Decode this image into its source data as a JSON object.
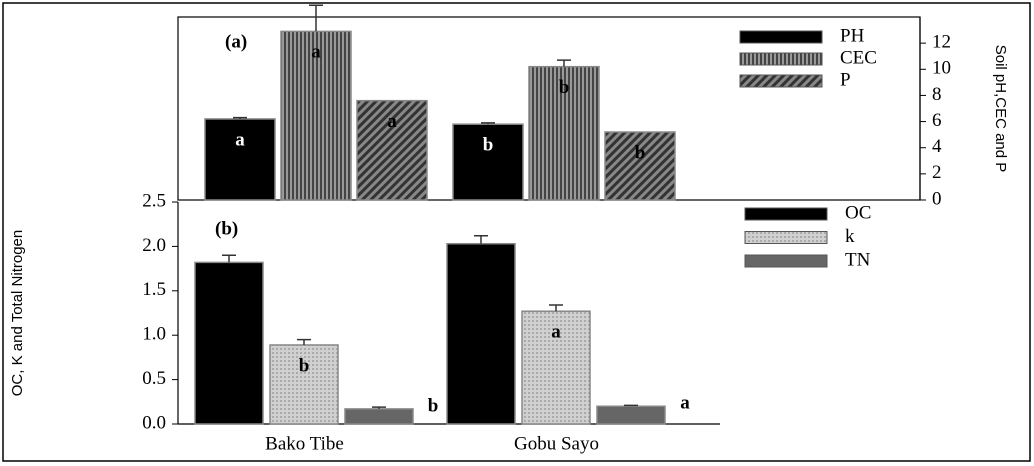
{
  "chart_data": [
    {
      "type": "bar",
      "panel_label": "(a)",
      "y_label": "Soil pH,CEC and P",
      "categories": [
        null,
        null
      ],
      "series": [
        {
          "name": "PH",
          "color": "#000000",
          "pattern": "solid",
          "values": [
            6.2,
            5.8
          ],
          "errors": [
            0.1,
            0.1
          ],
          "labels": [
            "a",
            "b"
          ]
        },
        {
          "name": "CEC",
          "color": "#444444",
          "pattern": "dots",
          "values": [
            12.9,
            10.2
          ],
          "errors": [
            2,
            0.5
          ],
          "labels": [
            "a",
            "b"
          ]
        },
        {
          "name": "P",
          "color": "#333333",
          "pattern": "diagonal",
          "values": [
            7.6,
            5.2
          ],
          "errors": [
            0,
            0
          ],
          "labels": [
            "a",
            "b"
          ]
        }
      ],
      "ylim": [
        0,
        14
      ],
      "yticks": [
        0,
        2,
        4,
        6,
        8,
        10,
        12
      ]
    },
    {
      "type": "bar",
      "panel_label": "(b)",
      "y_label": "OC, K and Total Nitrogen",
      "categories": [
        "Bako Tibe",
        "Gobu Sayo"
      ],
      "series": [
        {
          "name": "OC",
          "color": "#000000",
          "pattern": "solid",
          "values": [
            1.82,
            2.03
          ],
          "errors": [
            0.08,
            0.09
          ],
          "labels": [
            null,
            null
          ]
        },
        {
          "name": "k",
          "color": "#bbbbbb",
          "pattern": "dots",
          "values": [
            0.89,
            1.27
          ],
          "errors": [
            0.06,
            0.07
          ],
          "labels": [
            "b",
            "a"
          ]
        },
        {
          "name": "TN",
          "color": "#666666",
          "pattern": "solid",
          "values": [
            0.17,
            0.2
          ],
          "errors": [
            0.02,
            0.01
          ],
          "labels": [
            "b",
            "a"
          ]
        }
      ],
      "ylim": [
        0,
        2.5
      ],
      "yticks": [
        {
          "value": 0,
          "label": "0.0"
        },
        0.5,
        {
          "value": 1,
          "label": "1.0"
        },
        1.5,
        {
          "value": 2,
          "label": "2.0"
        },
        2.5
      ]
    }
  ]
}
